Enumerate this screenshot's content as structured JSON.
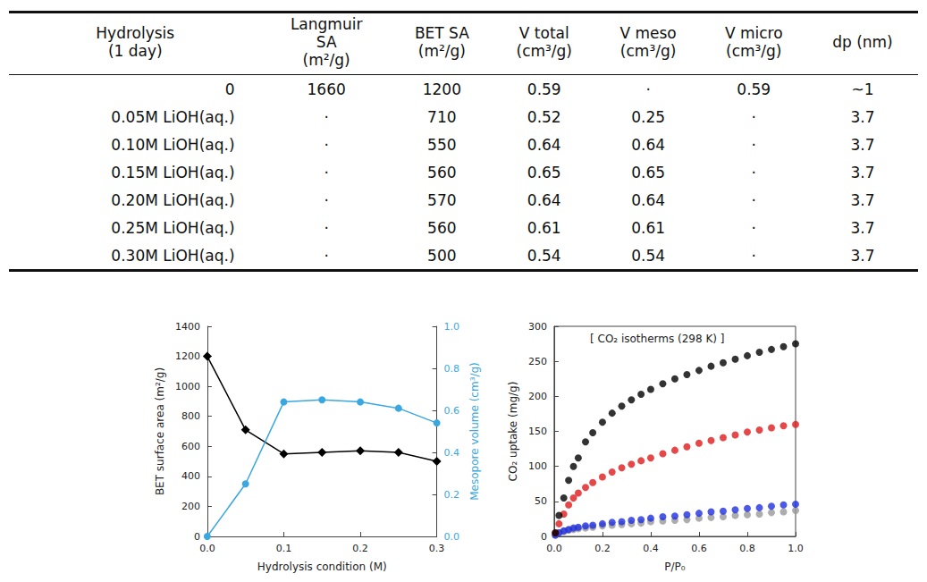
{
  "table": {
    "header": [
      "Hydrolysis\n(1 day)",
      "Langmuir\nSA\n(m²/g)",
      "BET SA\n(m²/g)",
      "V total\n(cm³/g)",
      "V meso\n(cm³/g)",
      "V micro\n(cm³/g)",
      "dp (nm)"
    ],
    "rows": [
      [
        "0",
        "1660",
        "1200",
        "0.59",
        "·",
        "0.59",
        "~1"
      ],
      [
        "0.05M LiOH(aq.)",
        "·",
        "710",
        "0.52",
        "0.25",
        "·",
        "3.7"
      ],
      [
        "0.10M LiOH(aq.)",
        "·",
        "550",
        "0.64",
        "0.64",
        "·",
        "3.7"
      ],
      [
        "0.15M LiOH(aq.)",
        "·",
        "560",
        "0.65",
        "0.65",
        "·",
        "3.7"
      ],
      [
        "0.20M LiOH(aq.)",
        "·",
        "570",
        "0.64",
        "0.64",
        "·",
        "3.7"
      ],
      [
        "0.25M LiOH(aq.)",
        "·",
        "560",
        "0.61",
        "0.61",
        "·",
        "3.7"
      ],
      [
        "0.30M LiOH(aq.)",
        "·",
        "500",
        "0.54",
        "0.54",
        "·",
        "3.7"
      ]
    ]
  },
  "chart_data": [
    {
      "type": "line",
      "xlabel": "Hydrolysis condition (M)",
      "ylabel": "BET surface area (m²/g)",
      "y2label": "Mesopore volume (cm³/g)",
      "x": [
        0,
        0.05,
        0.1,
        0.15,
        0.2,
        0.25,
        0.3
      ],
      "xlim": [
        0,
        0.3
      ],
      "xticks": [
        {
          "value": 0,
          "label": "0.0"
        },
        0.1,
        0.2,
        0.3
      ],
      "ylim": [
        0,
        1400
      ],
      "yticks": [
        0,
        200,
        400,
        600,
        800,
        1000,
        1200,
        1400
      ],
      "y2lim": [
        0,
        1
      ],
      "y2ticks": [
        {
          "value": 0,
          "label": "0.0"
        },
        0.2,
        0.4,
        0.6,
        0.8,
        {
          "value": 1,
          "label": "1.0"
        }
      ],
      "grid": false,
      "series": [
        {
          "color": "#000000",
          "marker": "diamond",
          "values": [
            1200,
            710,
            550,
            560,
            570,
            560,
            500
          ]
        },
        {
          "color": "#3ba7e0",
          "marker": "circle",
          "axis": "y2",
          "values": [
            0,
            0.25,
            0.64,
            0.65,
            0.64,
            0.61,
            0.54
          ]
        }
      ]
    },
    {
      "type": "scatter",
      "title": "[ CO₂ isotherms (298 K) ]",
      "xlabel": "P/P₀",
      "ylabel": "CO₂ uptake (mg/g)",
      "x": [
        0.005,
        0.02,
        0.04,
        0.06,
        0.08,
        0.1,
        0.13,
        0.16,
        0.2,
        0.24,
        0.28,
        0.32,
        0.36,
        0.4,
        0.45,
        0.5,
        0.55,
        0.6,
        0.65,
        0.7,
        0.75,
        0.8,
        0.85,
        0.9,
        0.95,
        1.0
      ],
      "xlim": [
        0,
        1
      ],
      "xticks": [
        {
          "value": 0,
          "label": "0.0"
        },
        0.2,
        0.4,
        0.6,
        0.8,
        {
          "value": 1,
          "label": "1.0"
        }
      ],
      "ylim": [
        0,
        300
      ],
      "yticks": [
        0,
        50,
        100,
        150,
        200,
        250,
        300
      ],
      "grid": false,
      "marker": "circle",
      "series": [
        {
          "color": "#999999",
          "values": [
            2,
            5,
            7,
            9,
            10,
            11,
            12,
            13,
            15,
            16,
            17,
            18,
            19,
            21,
            22,
            23,
            24,
            26,
            27,
            28,
            30,
            31,
            32,
            34,
            35,
            37
          ]
        },
        {
          "color": "#1f2ee0",
          "values": [
            2,
            5,
            8,
            10,
            12,
            13,
            15,
            16,
            18,
            20,
            21,
            23,
            24,
            26,
            28,
            29,
            31,
            33,
            35,
            36,
            38,
            40,
            41,
            43,
            45,
            46
          ]
        },
        {
          "color": "#e0191b",
          "values": [
            5,
            18,
            32,
            45,
            55,
            62,
            70,
            77,
            85,
            92,
            98,
            103,
            108,
            112,
            118,
            123,
            128,
            133,
            137,
            141,
            145,
            149,
            152,
            155,
            158,
            160
          ]
        },
        {
          "color": "#000000",
          "values": [
            5,
            30,
            55,
            80,
            100,
            112,
            135,
            148,
            163,
            176,
            186,
            195,
            203,
            210,
            218,
            225,
            231,
            237,
            243,
            248,
            253,
            258,
            263,
            267,
            271,
            275
          ]
        }
      ]
    }
  ]
}
